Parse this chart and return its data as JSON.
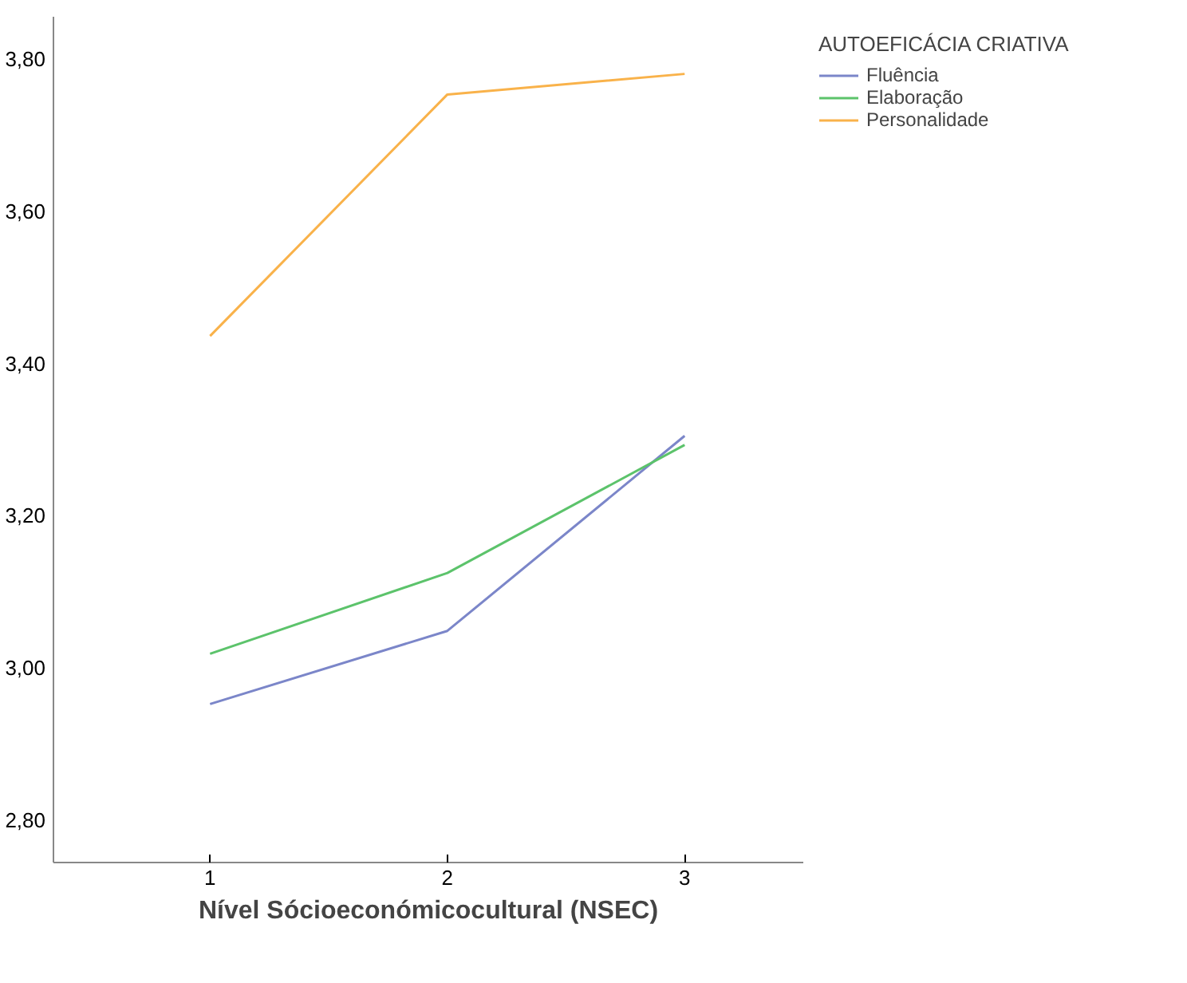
{
  "chart_data": {
    "type": "line",
    "xlabel": "Nível Sócioeconómicocultural (NSEC)",
    "legend_title": "AUTOEFICÁCIA CRIATIVA",
    "legend": "top right",
    "grid": false,
    "marker": "none",
    "line_style": "solid",
    "x": [
      1,
      2,
      3
    ],
    "xlim": [
      0.34,
      3.5
    ],
    "xticks": [
      1,
      2,
      3
    ],
    "ylim": [
      2.745,
      3.855
    ],
    "yticks": [
      {
        "value": 2.8,
        "label": "2,80"
      },
      {
        "value": 3.0,
        "label": "3,00"
      },
      {
        "value": 3.2,
        "label": "3,20"
      },
      {
        "value": 3.4,
        "label": "3,40"
      },
      {
        "value": 3.6,
        "label": "3,60"
      },
      {
        "value": 3.8,
        "label": "3,80"
      }
    ],
    "series": [
      {
        "name": "Fluência",
        "color": "#7b86c9",
        "values": [
          2.953,
          3.049,
          3.305
        ]
      },
      {
        "name": "Elaboração",
        "color": "#5cc36b",
        "values": [
          3.019,
          3.125,
          3.293
        ]
      },
      {
        "name": "Personalidade",
        "color": "#f9b24a",
        "values": [
          3.436,
          3.753,
          3.78
        ]
      }
    ]
  }
}
